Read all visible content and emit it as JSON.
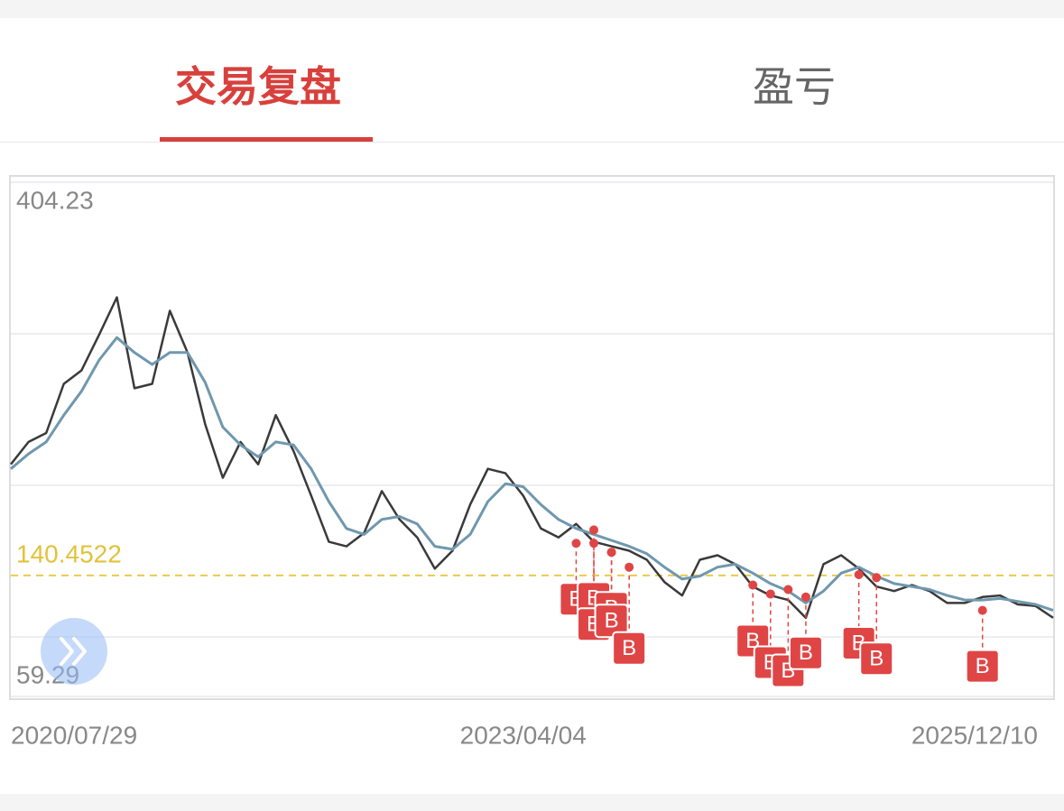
{
  "tabs": [
    "交易复盘",
    "盈亏"
  ],
  "chart_data": {
    "type": "line",
    "categories": [
      "2020/07/29",
      null,
      null,
      null,
      null,
      null,
      null,
      null,
      null,
      null,
      null,
      null,
      null,
      null,
      null,
      null,
      null,
      null,
      null,
      null,
      null,
      null,
      null,
      null,
      null,
      null,
      null,
      null,
      null,
      "2023/04/04",
      null,
      null,
      null,
      null,
      null,
      null,
      null,
      null,
      null,
      null,
      null,
      null,
      null,
      null,
      null,
      null,
      null,
      null,
      null,
      null,
      null,
      null,
      null,
      null,
      null,
      null,
      null,
      null,
      null,
      "2025/12/10"
    ],
    "series": [
      {
        "color": "#3a3a3a",
        "values": [
          215,
          230,
          236,
          269,
          278,
          302,
          327,
          266,
          269,
          318,
          290,
          242,
          206,
          230,
          215,
          248,
          224,
          194,
          163,
          160,
          169,
          197,
          178,
          166,
          145,
          157,
          188,
          212,
          209,
          194,
          172,
          166,
          175,
          163,
          160,
          157,
          151,
          136,
          127,
          151,
          154,
          148,
          133,
          127,
          124,
          112,
          148,
          154,
          145,
          133,
          130,
          134,
          130,
          122,
          122,
          126,
          127,
          121,
          120,
          112
        ]
      },
      {
        "color": "#6f98ad",
        "values": [
          212,
          222,
          230,
          248,
          264,
          285,
          300,
          290,
          282,
          290,
          290,
          270,
          240,
          228,
          220,
          230,
          228,
          212,
          190,
          172,
          168,
          178,
          180,
          175,
          160,
          158,
          168,
          190,
          202,
          200,
          188,
          178,
          172,
          168,
          164,
          160,
          155,
          146,
          138,
          140,
          146,
          148,
          142,
          135,
          130,
          122,
          130,
          142,
          146,
          140,
          135,
          133,
          131,
          127,
          124,
          124,
          125,
          123,
          121,
          117
        ]
      }
    ],
    "ylim": [
      59.29,
      404.23
    ],
    "yticks": [
      404.23,
      59.29
    ],
    "reference_line": 140.4522,
    "marker_label": "B",
    "marker_color": "#e04545",
    "markers": [
      {
        "x": 32,
        "value": 162
      },
      {
        "x": 33,
        "value": 171
      },
      {
        "x": 33,
        "value": 162
      },
      {
        "x": 34,
        "value": 156
      },
      {
        "x": 34,
        "value": 156
      },
      {
        "x": 35,
        "value": 146
      },
      {
        "x": 42,
        "value": 134
      },
      {
        "x": 43,
        "value": 128
      },
      {
        "x": 44,
        "value": 131
      },
      {
        "x": 45,
        "value": 126
      },
      {
        "x": 48,
        "value": 141
      },
      {
        "x": 49,
        "value": 139
      },
      {
        "x": 55,
        "value": 117
      }
    ]
  }
}
